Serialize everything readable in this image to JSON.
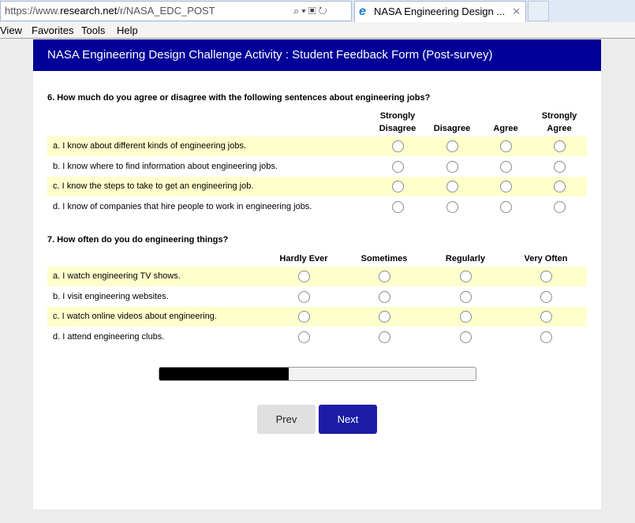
{
  "browser": {
    "url_prefix": "https://www.",
    "url_domain": "research.net",
    "url_path": "/r/NASA_EDC_POST",
    "tab_title": "NASA Engineering Design ...",
    "menu": [
      "View",
      "Favorites",
      "Tools",
      "Help"
    ]
  },
  "header": {
    "title": "NASA Engineering Design Challenge Activity : Student Feedback Form (Post-survey)"
  },
  "q6": {
    "title": "6. How much do you agree or disagree with the following sentences about engineering jobs?",
    "columns": [
      [
        "Strongly",
        "Disagree"
      ],
      [
        "",
        "Disagree"
      ],
      [
        "",
        "Agree"
      ],
      [
        "Strongly",
        "Agree"
      ]
    ],
    "rows": [
      "a. I know about different kinds of engineering jobs.",
      "b. I know where to find information about engineering jobs.",
      "c. I know the steps to take to get an engineering job.",
      "d. I know of companies that hire people to work in engineering jobs."
    ]
  },
  "q7": {
    "title": "7. How often do you do engineering things?",
    "columns": [
      "Hardly Ever",
      "Sometimes",
      "Regularly",
      "Very Often"
    ],
    "rows": [
      "a. I watch engineering TV shows.",
      "b. I visit engineering websites.",
      "c. I watch online videos about engineering.",
      "d. I attend engineering clubs."
    ]
  },
  "progress": {
    "percent": 41
  },
  "buttons": {
    "prev": "Prev",
    "next": "Next"
  },
  "colors": {
    "header": "#000099",
    "row_highlight": "#ffffcc",
    "next_button": "#1c1ca6"
  }
}
